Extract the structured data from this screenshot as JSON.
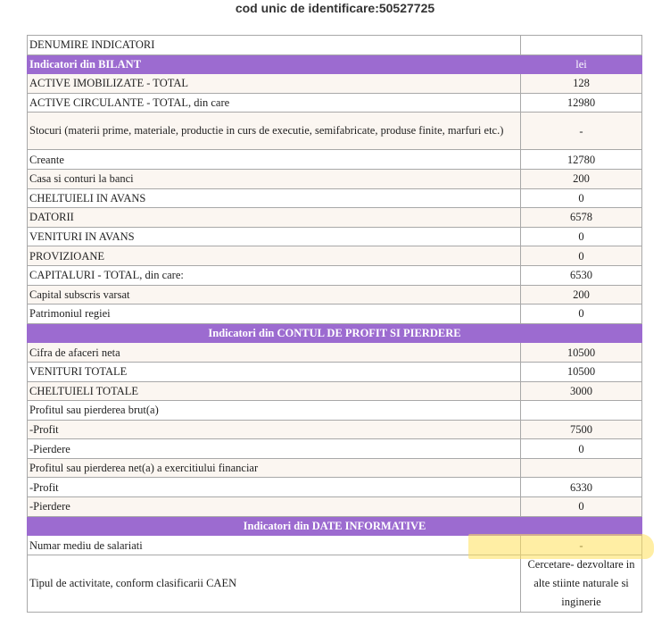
{
  "heading": "cod unic de identificare:50527725",
  "header_row": {
    "label": "DENUMIRE INDICATORI",
    "value": ""
  },
  "sections": [
    {
      "title": "Indicatori din BILANT",
      "unit": "lei",
      "rows": [
        {
          "label": "ACTIVE IMOBILIZATE - TOTAL",
          "value": "128"
        },
        {
          "label": "ACTIVE CIRCULANTE - TOTAL, din care",
          "value": "12980"
        },
        {
          "label": "Stocuri (materii prime, materiale, productie in curs de executie, semifabricate, produse finite, marfuri etc.)",
          "value": "-"
        },
        {
          "label": "Creante",
          "value": "12780"
        },
        {
          "label": "Casa si conturi la banci",
          "value": "200"
        },
        {
          "label": "CHELTUIELI IN AVANS",
          "value": "0"
        },
        {
          "label": "DATORII",
          "value": "6578"
        },
        {
          "label": "VENITURI IN AVANS",
          "value": "0"
        },
        {
          "label": "PROVIZIOANE",
          "value": "0"
        },
        {
          "label": "CAPITALURI - TOTAL, din care:",
          "value": "6530"
        },
        {
          "label": "Capital subscris varsat",
          "value": "200"
        },
        {
          "label": "Patrimoniul regiei",
          "value": "0"
        }
      ]
    },
    {
      "title": "Indicatori din CONTUL DE PROFIT SI PIERDERE",
      "rows": [
        {
          "label": "Cifra de afaceri neta",
          "value": "10500"
        },
        {
          "label": "VENITURI TOTALE",
          "value": "10500"
        },
        {
          "label": "CHELTUIELI TOTALE",
          "value": "3000"
        },
        {
          "label": "Profitul sau pierderea brut(a)",
          "value": ""
        },
        {
          "label": "-Profit",
          "value": "7500"
        },
        {
          "label": "-Pierdere",
          "value": "0"
        },
        {
          "label": "Profitul sau pierderea net(a) a exercitiului financiar",
          "value": ""
        },
        {
          "label": "-Profit",
          "value": "6330"
        },
        {
          "label": "-Pierdere",
          "value": "0"
        }
      ]
    },
    {
      "title": "Indicatori din DATE INFORMATIVE",
      "rows": [
        {
          "label": "Numar mediu de salariati",
          "value": "-"
        },
        {
          "label": "Tipul de activitate, conform clasificarii CAEN",
          "value": "Cercetare- dezvoltare in alte stiinte naturale si inginerie"
        }
      ]
    }
  ],
  "colors": {
    "section_header_bg": "#9c6bd0",
    "alt_row_bg": "#fbf6f1",
    "highlight": "#ffe05a"
  }
}
